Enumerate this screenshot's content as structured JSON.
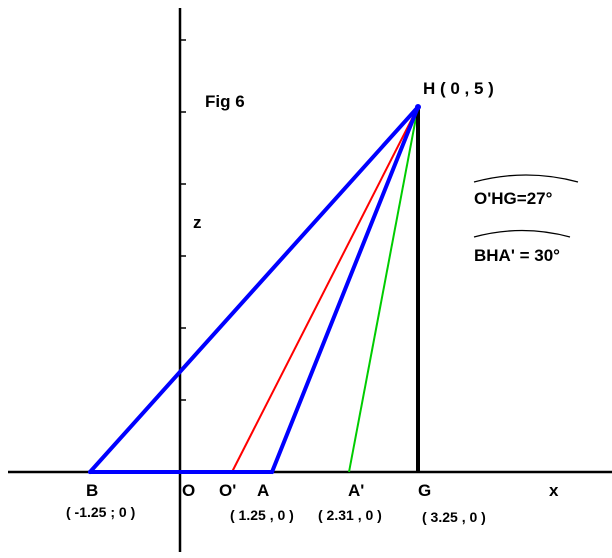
{
  "figure": {
    "title": "Fig 6",
    "axis_z_label": "z",
    "axis_x_label": "x",
    "colors": {
      "axis": "#000000",
      "triangle": "#0000ff",
      "red_line": "#ff0000",
      "green_line": "#00cc00",
      "vertical": "#000000"
    }
  },
  "points": {
    "H": {
      "label": "H ( 0 , 5 )"
    },
    "B": {
      "label": "B",
      "coord": "( -1.25 ; 0 )"
    },
    "O": {
      "label": "O"
    },
    "O_prime": {
      "label": "O'"
    },
    "A": {
      "label": "A",
      "coord": "( 1.25 , 0 )"
    },
    "A_prime": {
      "label": "A'",
      "coord": "( 2.31 , 0 )"
    },
    "G": {
      "label": "G",
      "coord": "( 3.25 , 0 )"
    }
  },
  "angles": {
    "ohg": {
      "text": "O'HG=27°"
    },
    "bha": {
      "text": "BHA' = 30°"
    }
  }
}
